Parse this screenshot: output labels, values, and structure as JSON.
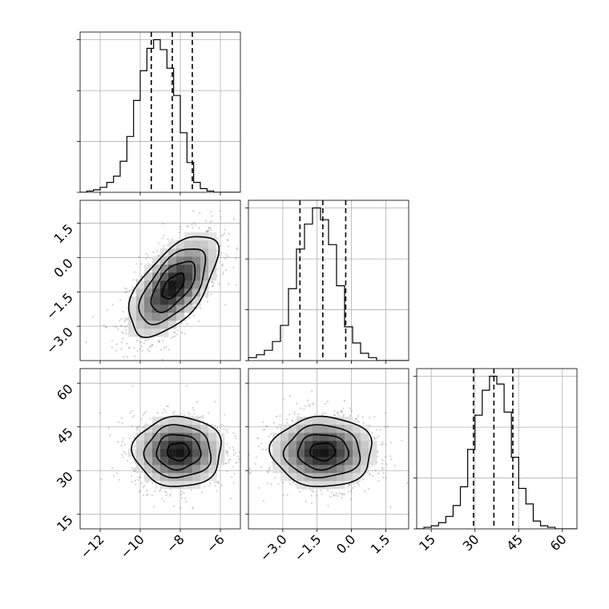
{
  "chart_data": {
    "type": "corner",
    "grid": true,
    "parameters": [
      {
        "range": [
          -13.0,
          -5.0
        ],
        "ticks": [
          -12,
          -10,
          -8,
          -6
        ],
        "tick_labels": [
          "−12",
          "−10",
          "−8",
          "−6"
        ],
        "quantiles": [
          -9.45,
          -8.4,
          -7.4
        ]
      },
      {
        "range": [
          -4.5,
          2.5
        ],
        "ticks": [
          -3.0,
          -1.5,
          0.0,
          1.5
        ],
        "tick_labels": [
          "−3.0",
          "−1.5",
          "0.0",
          "1.5"
        ],
        "quantiles": [
          -2.25,
          -1.25,
          -0.25
        ]
      },
      {
        "range": [
          10,
          65
        ],
        "ticks": [
          15,
          30,
          45,
          60
        ],
        "tick_labels": [
          "15",
          "30",
          "45",
          "60"
        ],
        "quantiles": [
          29.5,
          36.5,
          43.0
        ]
      }
    ],
    "histograms": [
      {
        "edges_range": [
          -13.0,
          -5.0
        ],
        "bins": 24,
        "counts": [
          0,
          1,
          2,
          4,
          8,
          13,
          25,
          45,
          74,
          98,
          116,
          123,
          115,
          100,
          78,
          48,
          24,
          8,
          3,
          1,
          0,
          0,
          0,
          0
        ]
      },
      {
        "edges_range": [
          -4.5,
          2.5
        ],
        "bins": 20,
        "counts": [
          2,
          4,
          7,
          13,
          24,
          49,
          76,
          93,
          104,
          96,
          79,
          51,
          23,
          12,
          5,
          2,
          0,
          0,
          0,
          0
        ]
      },
      {
        "edges_range": [
          10,
          65
        ],
        "bins": 22,
        "counts": [
          0,
          1,
          2,
          4,
          8,
          15,
          27,
          51,
          73,
          89,
          98,
          93,
          75,
          46,
          26,
          16,
          5,
          2,
          1,
          0,
          0,
          0
        ]
      }
    ],
    "pairs": [
      {
        "x": 0,
        "y": 1,
        "center": [
          -8.35,
          -1.25
        ],
        "std": [
          1.1,
          1.1
        ],
        "rho": 0.6
      },
      {
        "x": 0,
        "y": 2,
        "center": [
          -8.1,
          36.5
        ],
        "std": [
          1.1,
          6.0
        ],
        "rho": 0.0
      },
      {
        "x": 1,
        "y": 2,
        "center": [
          -1.25,
          36.5
        ],
        "std": [
          1.1,
          6.0
        ],
        "rho": 0.0
      }
    ],
    "contour_sigmas": [
      0.5,
      1.0,
      1.5,
      2.0
    ]
  }
}
